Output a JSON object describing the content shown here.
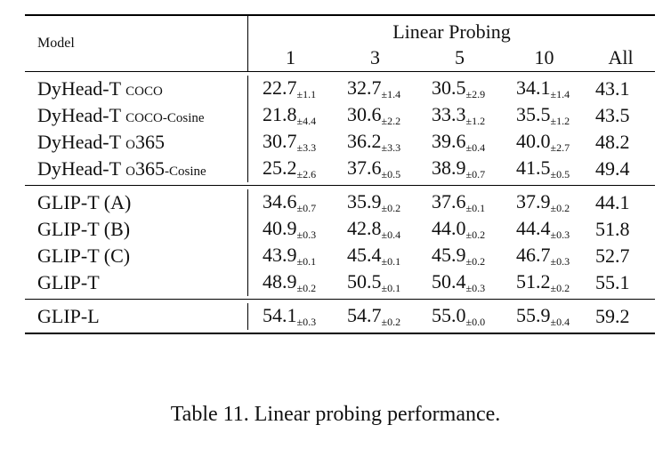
{
  "table": {
    "header": {
      "model_label": "Model",
      "group_label": "Linear Probing",
      "columns": [
        "1",
        "3",
        "5",
        "10",
        "All"
      ]
    },
    "groups": [
      {
        "rows": [
          {
            "model_main": "DyHead-T ",
            "model_sc": "coco",
            "model_sub": "",
            "v1": "22.7",
            "s1": "±1.1",
            "v3": "32.7",
            "s3": "±1.4",
            "v5": "30.5",
            "s5": "±2.9",
            "v10": "34.1",
            "s10": "±1.4",
            "all": "43.1"
          },
          {
            "model_main": "DyHead-T ",
            "model_sc": "coco",
            "model_sub": "-Cosine",
            "v1": "21.8",
            "s1": "±4.4",
            "v3": "30.6",
            "s3": "±2.2",
            "v5": "33.3",
            "s5": "±1.2",
            "v10": "35.5",
            "s10": "±1.2",
            "all": "43.5"
          },
          {
            "model_main": "DyHead-T ",
            "model_sc": "o365",
            "model_sub": "",
            "v1": "30.7",
            "s1": "±3.3",
            "v3": "36.2",
            "s3": "±3.3",
            "v5": "39.6",
            "s5": "±0.4",
            "v10": "40.0",
            "s10": "±2.7",
            "all": "48.2"
          },
          {
            "model_main": "DyHead-T ",
            "model_sc": "o365",
            "model_sub": "-Cosine",
            "v1": "25.2",
            "s1": "±2.6",
            "v3": "37.6",
            "s3": "±0.5",
            "v5": "38.9",
            "s5": "±0.7",
            "v10": "41.5",
            "s10": "±0.5",
            "all": "49.4"
          }
        ]
      },
      {
        "rows": [
          {
            "model_main": "GLIP-T (A)",
            "model_sc": "",
            "model_sub": "",
            "v1": "34.6",
            "s1": "±0.7",
            "v3": "35.9",
            "s3": "±0.2",
            "v5": "37.6",
            "s5": "±0.1",
            "v10": "37.9",
            "s10": "±0.2",
            "all": "44.1"
          },
          {
            "model_main": "GLIP-T (B)",
            "model_sc": "",
            "model_sub": "",
            "v1": "40.9",
            "s1": "±0.3",
            "v3": "42.8",
            "s3": "±0.4",
            "v5": "44.0",
            "s5": "±0.2",
            "v10": "44.4",
            "s10": "±0.3",
            "all": "51.8"
          },
          {
            "model_main": "GLIP-T (C)",
            "model_sc": "",
            "model_sub": "",
            "v1": "43.9",
            "s1": "±0.1",
            "v3": "45.4",
            "s3": "±0.1",
            "v5": "45.9",
            "s5": "±0.2",
            "v10": "46.7",
            "s10": "±0.3",
            "all": "52.7"
          },
          {
            "model_main": "GLIP-T",
            "model_sc": "",
            "model_sub": "",
            "v1": "48.9",
            "s1": "±0.2",
            "v3": "50.5",
            "s3": "±0.1",
            "v5": "50.4",
            "s5": "±0.3",
            "v10": "51.2",
            "s10": "±0.2",
            "all": "55.1"
          }
        ]
      },
      {
        "rows": [
          {
            "model_main": "GLIP-L",
            "model_sc": "",
            "model_sub": "",
            "v1": "54.1",
            "s1": "±0.3",
            "v3": "54.7",
            "s3": "±0.2",
            "v5": "55.0",
            "s5": "±0.0",
            "v10": "55.9",
            "s10": "±0.4",
            "all": "59.2"
          }
        ]
      }
    ]
  },
  "caption": "Table 11. Linear probing performance."
}
